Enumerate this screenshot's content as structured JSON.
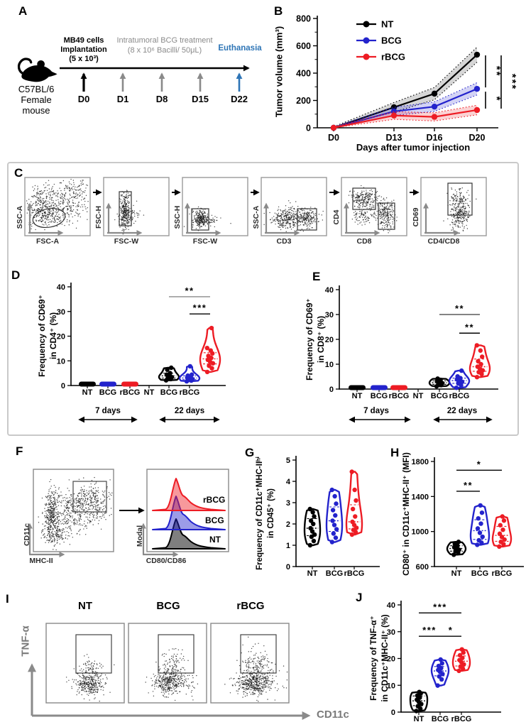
{
  "colors": {
    "nt": "#000000",
    "bcg": "#2323cc",
    "rbcg": "#ed1c24",
    "timeline_blue": "#2e75b6",
    "gray": "#8a8a8a",
    "panel_border": "#c9c9c9"
  },
  "panels": {
    "a": "A",
    "b": "B",
    "c": "C",
    "d": "D",
    "e": "E",
    "f": "F",
    "g": "G",
    "h": "H",
    "i": "I",
    "j": "J"
  },
  "panelA": {
    "cells_line1": "MB49 cells",
    "cells_line2": "Implantation",
    "cells_line3": "(5 x 10³)",
    "treatment_line1": "Intratumoral BCG treatment",
    "treatment_line2": "(8 x 10⁶ Bacilli/ 50μL)",
    "euthanasia": "Euthanasia",
    "mouse_line1": "C57BL/6",
    "mouse_line2": "Female",
    "mouse_line3": "mouse",
    "days": [
      "D0",
      "D1",
      "D8",
      "D15",
      "D22"
    ]
  },
  "panelC": {
    "plots": [
      {
        "xlabel": "FSC-A",
        "ylabel": "SSC-A"
      },
      {
        "xlabel": "FSC-W",
        "ylabel": "FSC-H"
      },
      {
        "xlabel": "FSC-W",
        "ylabel": "SSC-H"
      },
      {
        "xlabel": "CD3",
        "ylabel": "SSC-A"
      },
      {
        "xlabel": "CD8",
        "ylabel": "CD4"
      },
      {
        "xlabel": "CD4/CD8",
        "ylabel": "CD69"
      }
    ]
  },
  "panelF": {
    "scatter_xlabel": "MHC-II",
    "scatter_ylabel": "CD11c",
    "hist_xlabel": "CD80/CD86",
    "hist_ylabel": "Modal",
    "hist_series": [
      "rBCG",
      "BCG",
      "NT"
    ]
  },
  "panelI": {
    "plot_titles": [
      "NT",
      "BCG",
      "rBCG"
    ],
    "xlabel": "CD11c",
    "ylabel": "TNF-α"
  },
  "chart_data": [
    {
      "id": "B",
      "type": "line",
      "xlabel": "Days after tumor injection",
      "ylabel": "Tumor volume (mm³)",
      "x": [
        "D0",
        "D13",
        "D16",
        "D20"
      ],
      "ylim": [
        0,
        800
      ],
      "yticks": [
        0,
        200,
        400,
        600,
        800
      ],
      "legend_position": "top-left",
      "series": [
        {
          "name": "NT",
          "color": "#000000",
          "values": [
            0,
            150,
            250,
            535
          ],
          "band": [
            8,
            35,
            45,
            55
          ]
        },
        {
          "name": "BCG",
          "color": "#2323cc",
          "values": [
            0,
            120,
            155,
            285
          ],
          "band": [
            8,
            30,
            35,
            45
          ]
        },
        {
          "name": "rBCG",
          "color": "#ed1c24",
          "values": [
            0,
            90,
            80,
            130
          ],
          "band": [
            8,
            28,
            30,
            35
          ]
        }
      ],
      "significance": [
        {
          "stars": "**",
          "y1": 535,
          "y2": 285,
          "col": 0
        },
        {
          "stars": "*",
          "y1": 285,
          "y2": 130,
          "col": 0
        },
        {
          "stars": "***",
          "y1": 535,
          "y2": 130,
          "col": 1
        }
      ]
    },
    {
      "id": "D",
      "type": "violin",
      "ylabel_lines": [
        "Frequency of CD69⁺",
        "in CD4⁺ (%)"
      ],
      "ylim": [
        0,
        40
      ],
      "yticks": [
        0,
        10,
        20,
        30,
        40
      ],
      "era_labels": [
        "7 days",
        "22 days"
      ],
      "groups": [
        {
          "label": "NT",
          "era": "7 days",
          "color": "#000000",
          "style": "flat",
          "values": [
            0.2,
            0.3,
            0.4
          ]
        },
        {
          "label": "BCG",
          "era": "7 days",
          "color": "#2323cc",
          "style": "flat",
          "values": [
            0.2,
            0.3,
            0.4
          ]
        },
        {
          "label": "rBCG",
          "era": "7 days",
          "color": "#ed1c24",
          "style": "flat",
          "values": [
            0.2,
            0.3,
            0.4
          ]
        },
        {
          "label": "NT",
          "era": "22 days",
          "color": "#000000",
          "style": "violin",
          "values": [
            2.1,
            2.6,
            3.0,
            3.4,
            3.9,
            4.4,
            5.0,
            6.4,
            7.2
          ]
        },
        {
          "label": "BCG",
          "era": "22 days",
          "color": "#2323cc",
          "style": "violin",
          "values": [
            1.7,
            2.0,
            2.3,
            2.6,
            2.9,
            3.2,
            3.6,
            4.0,
            4.4,
            7.8
          ]
        },
        {
          "label": "rBCG",
          "era": "22 days",
          "color": "#ed1c24",
          "style": "violin",
          "values": [
            5.5,
            7.0,
            8.0,
            9.0,
            9.6,
            10.4,
            11.2,
            12.0,
            13.0,
            14.2,
            15.2,
            23.3
          ]
        }
      ],
      "significance": [
        {
          "stars": "**",
          "g1": 3,
          "g2": 5,
          "y": 36,
          "color": "#8a8a8a"
        },
        {
          "stars": "***",
          "g1": 4,
          "g2": 5,
          "y": 29,
          "color": "#000000"
        }
      ]
    },
    {
      "id": "E",
      "type": "violin",
      "ylabel_lines": [
        "Frequency of CD69⁺",
        "in CD8⁺ (%)"
      ],
      "ylim": [
        0,
        40
      ],
      "yticks": [
        0,
        10,
        20,
        30,
        40
      ],
      "era_labels": [
        "7 days",
        "22 days"
      ],
      "groups": [
        {
          "label": "NT",
          "era": "7 days",
          "color": "#000000",
          "style": "flat",
          "values": [
            0.2,
            0.3,
            0.4
          ]
        },
        {
          "label": "BCG",
          "era": "7 days",
          "color": "#2323cc",
          "style": "flat",
          "values": [
            0.2,
            0.3,
            0.4
          ]
        },
        {
          "label": "rBCG",
          "era": "7 days",
          "color": "#ed1c24",
          "style": "flat",
          "values": [
            0.2,
            0.3,
            0.4
          ]
        },
        {
          "label": "NT",
          "era": "22 days",
          "color": "#000000",
          "style": "violin",
          "values": [
            1.1,
            1.6,
            2.0,
            2.4,
            2.8,
            3.2,
            3.7,
            4.2
          ]
        },
        {
          "label": "BCG",
          "era": "22 days",
          "color": "#2323cc",
          "style": "violin",
          "values": [
            0.5,
            1.5,
            2.3,
            2.9,
            3.4,
            3.9,
            4.4,
            5.1,
            7.4
          ]
        },
        {
          "label": "rBCG",
          "era": "22 days",
          "color": "#ed1c24",
          "style": "violin",
          "values": [
            4.8,
            6.0,
            6.8,
            7.5,
            8.2,
            9.0,
            10.0,
            11.2,
            13.0,
            15.5,
            17.6
          ]
        }
      ],
      "significance": [
        {
          "stars": "**",
          "g1": 3,
          "g2": 5,
          "y": 30,
          "color": "#5a5a5a"
        },
        {
          "stars": "**",
          "g1": 4,
          "g2": 5,
          "y": 22.5,
          "color": "#000000"
        }
      ]
    },
    {
      "id": "G",
      "type": "violin",
      "ylabel_lines": [
        "Frequency of CD11c⁺MHC-IIʰⁱ",
        "in CD45⁺ (%)"
      ],
      "ylim": [
        0,
        5
      ],
      "yticks": [
        0,
        1,
        2,
        3,
        4,
        5
      ],
      "era_labels": [],
      "groups": [
        {
          "label": "NT",
          "color": "#000000",
          "style": "violin",
          "values": [
            1.0,
            1.2,
            1.4,
            1.5,
            1.65,
            1.8,
            2.0,
            2.15,
            2.35,
            2.55,
            2.7
          ]
        },
        {
          "label": "BCG",
          "color": "#2323cc",
          "style": "violin",
          "values": [
            1.15,
            1.35,
            1.55,
            1.75,
            1.95,
            2.15,
            2.4,
            2.65,
            2.95,
            3.3,
            3.6
          ]
        },
        {
          "label": "rBCG",
          "color": "#ed1c24",
          "style": "violin",
          "values": [
            1.5,
            1.62,
            1.72,
            1.82,
            1.95,
            2.1,
            2.35,
            2.7,
            3.1,
            3.6,
            4.45
          ]
        }
      ],
      "significance": []
    },
    {
      "id": "H",
      "type": "violin",
      "ylabel_lines": [
        "CD80⁺ in CD11c⁺MHC-II⁺ (MFI)"
      ],
      "ylim": [
        600,
        1800
      ],
      "yticks": [
        600,
        1000,
        1400,
        1800
      ],
      "era_labels": [],
      "groups": [
        {
          "label": "NT",
          "color": "#000000",
          "style": "violin",
          "values": [
            735,
            758,
            776,
            792,
            806,
            820,
            838,
            858,
            882
          ]
        },
        {
          "label": "BCG",
          "color": "#2323cc",
          "style": "violin",
          "values": [
            848,
            872,
            900,
            940,
            985,
            1035,
            1090,
            1150,
            1215,
            1298
          ]
        },
        {
          "label": "rBCG",
          "color": "#ed1c24",
          "style": "violin",
          "values": [
            828,
            855,
            882,
            908,
            938,
            975,
            1020,
            1072,
            1125,
            1172
          ]
        }
      ],
      "significance": [
        {
          "stars": "**",
          "g1": 0,
          "g2": 1,
          "y": 1460,
          "color": "#000000"
        },
        {
          "stars": "*",
          "g1": 0,
          "g2": 2,
          "y": 1700,
          "color": "#000000"
        }
      ]
    },
    {
      "id": "J",
      "type": "violin",
      "ylabel_lines": [
        "Frequency of TNF-α⁺",
        "in CD11c⁺MHC-II⁺ (%)"
      ],
      "ylim": [
        0,
        40
      ],
      "yticks": [
        0,
        10,
        20,
        30,
        40
      ],
      "era_labels": [],
      "groups": [
        {
          "label": "NT",
          "color": "#000000",
          "style": "violin",
          "values": [
            0.4,
            1.3,
            2.2,
            3.0,
            3.8,
            4.6,
            5.4,
            6.2,
            7.0,
            7.5
          ]
        },
        {
          "label": "BCG",
          "color": "#2323cc",
          "style": "violin",
          "values": [
            9.9,
            12.2,
            13.3,
            14.2,
            15.0,
            15.7,
            16.4,
            17.2,
            18.2,
            19.6
          ]
        },
        {
          "label": "rBCG",
          "color": "#ed1c24",
          "style": "violin",
          "values": [
            15.4,
            16.2,
            17.0,
            17.8,
            18.6,
            19.4,
            20.2,
            21.2,
            22.2,
            23.4
          ]
        }
      ],
      "significance": [
        {
          "stars": "***",
          "g1": 0,
          "g2": 2,
          "y": 37,
          "color": "#000000"
        },
        {
          "stars": "***",
          "g1": 0,
          "g2": 1,
          "y": 28.3,
          "color": "#000000"
        },
        {
          "stars": "*",
          "g1": 1,
          "g2": 2,
          "y": 28.3,
          "color": "#000000"
        }
      ]
    }
  ]
}
